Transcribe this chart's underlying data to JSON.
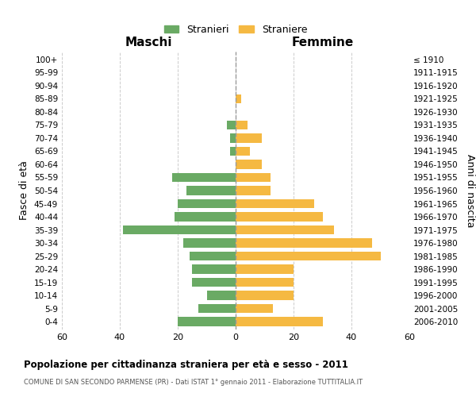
{
  "age_groups": [
    "0-4",
    "5-9",
    "10-14",
    "15-19",
    "20-24",
    "25-29",
    "30-34",
    "35-39",
    "40-44",
    "45-49",
    "50-54",
    "55-59",
    "60-64",
    "65-69",
    "70-74",
    "75-79",
    "80-84",
    "85-89",
    "90-94",
    "95-99",
    "100+"
  ],
  "birth_years": [
    "2006-2010",
    "2001-2005",
    "1996-2000",
    "1991-1995",
    "1986-1990",
    "1981-1985",
    "1976-1980",
    "1971-1975",
    "1966-1970",
    "1961-1965",
    "1956-1960",
    "1951-1955",
    "1946-1950",
    "1941-1945",
    "1936-1940",
    "1931-1935",
    "1926-1930",
    "1921-1925",
    "1916-1920",
    "1911-1915",
    "≤ 1910"
  ],
  "maschi": [
    20,
    13,
    10,
    15,
    15,
    16,
    18,
    39,
    21,
    20,
    17,
    22,
    0,
    2,
    2,
    3,
    0,
    0,
    0,
    0,
    0
  ],
  "femmine": [
    30,
    13,
    20,
    20,
    20,
    50,
    47,
    34,
    30,
    27,
    12,
    12,
    9,
    5,
    9,
    4,
    0,
    2,
    0,
    0,
    0
  ],
  "maschi_color": "#6aaa64",
  "femmine_color": "#f5b942",
  "title": "Popolazione per cittadinanza straniera per età e sesso - 2011",
  "subtitle": "COMUNE DI SAN SECONDO PARMENSE (PR) - Dati ISTAT 1° gennaio 2011 - Elaborazione TUTTITALIA.IT",
  "ylabel_left": "Fasce di età",
  "ylabel_right": "Anni di nascita",
  "xlabel_left": "Maschi",
  "xlabel_right": "Femmine",
  "legend_maschi": "Stranieri",
  "legend_femmine": "Straniere",
  "xlim": 60,
  "background_color": "#ffffff",
  "grid_color": "#cccccc"
}
